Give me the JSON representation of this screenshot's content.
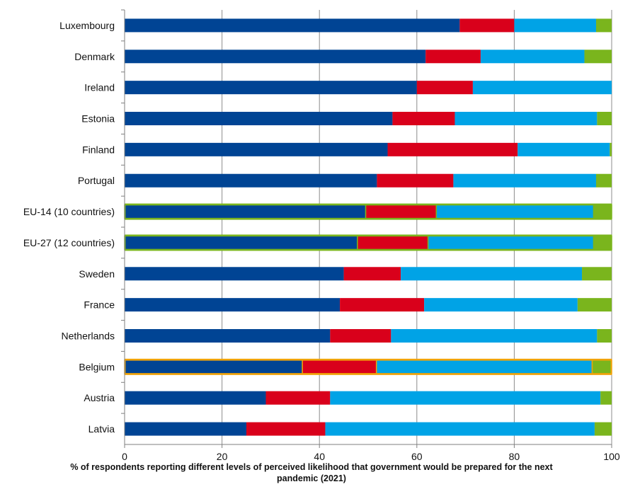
{
  "chart_data": {
    "type": "bar",
    "orientation": "horizontal",
    "stacked": true,
    "title": "",
    "xlabel": "% of respondents reporting different levels of perceived likelihood that government would be prepared for the next pandemic (2021)",
    "ylabel": "",
    "xlim": [
      0,
      100
    ],
    "xticks": [
      0,
      20,
      40,
      60,
      80,
      100
    ],
    "grid": "vertical",
    "legend": "none",
    "categories": [
      "Luxembourg",
      "Denmark",
      "Ireland",
      "Estonia",
      "Finland",
      "Portugal",
      "EU-14 (10 countries)",
      "EU-27 (12 countries)",
      "Sweden",
      "France",
      "Netherlands",
      "Belgium",
      "Austria",
      "Latvia"
    ],
    "highlighted": {
      "EU-14 (10 countries)": "#7ab51d",
      "EU-27 (12 countries)": "#7ab51d",
      "Belgium": "#f0a30a"
    },
    "series": [
      {
        "color": "#004494",
        "values": [
          68.8,
          61.8,
          60.0,
          55.0,
          54.0,
          51.8,
          49.5,
          47.8,
          45.0,
          44.2,
          42.2,
          36.5,
          29.0,
          25.0
        ]
      },
      {
        "color": "#d9001b",
        "values": [
          11.2,
          11.3,
          11.5,
          12.8,
          26.7,
          15.7,
          14.5,
          14.5,
          11.7,
          17.3,
          12.5,
          15.2,
          13.2,
          16.2
        ]
      },
      {
        "color": "#00a3e6",
        "values": [
          16.8,
          21.3,
          28.5,
          29.2,
          18.9,
          29.3,
          32.3,
          34.0,
          37.2,
          31.5,
          42.3,
          44.3,
          55.5,
          55.3
        ]
      },
      {
        "color": "#7ab51d",
        "values": [
          3.2,
          5.6,
          0.0,
          3.0,
          0.4,
          3.2,
          3.7,
          3.7,
          6.1,
          7.0,
          3.0,
          4.0,
          2.3,
          3.5
        ]
      }
    ]
  }
}
